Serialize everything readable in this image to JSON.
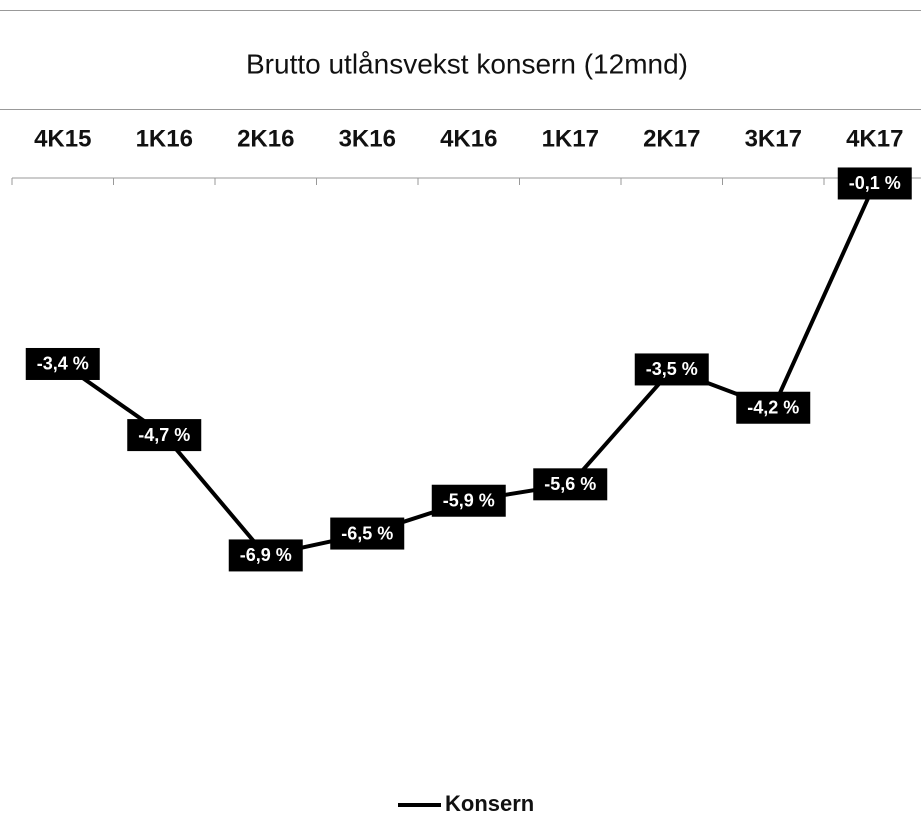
{
  "chart_data": {
    "type": "line",
    "title": "Brutto utlånsvekst konsern (12mnd)",
    "categories": [
      "4K15",
      "1K16",
      "2K16",
      "3K16",
      "4K16",
      "1K17",
      "2K17",
      "3K17",
      "4K17"
    ],
    "series": [
      {
        "name": "Konsern",
        "color": "#000000",
        "values": [
          -3.4,
          -4.7,
          -6.9,
          -6.5,
          -5.9,
          -5.6,
          -3.5,
          -4.2,
          -0.1
        ],
        "value_labels": [
          "-3,4 %",
          "-4,7 %",
          "-6,9 %",
          "-6,5 %",
          "-5,9 %",
          "-5,6 %",
          "-3,5 %",
          "-4,2 %",
          "-0,1 %"
        ]
      }
    ],
    "ylim": [
      -10,
      0
    ],
    "legend": "bottom"
  }
}
